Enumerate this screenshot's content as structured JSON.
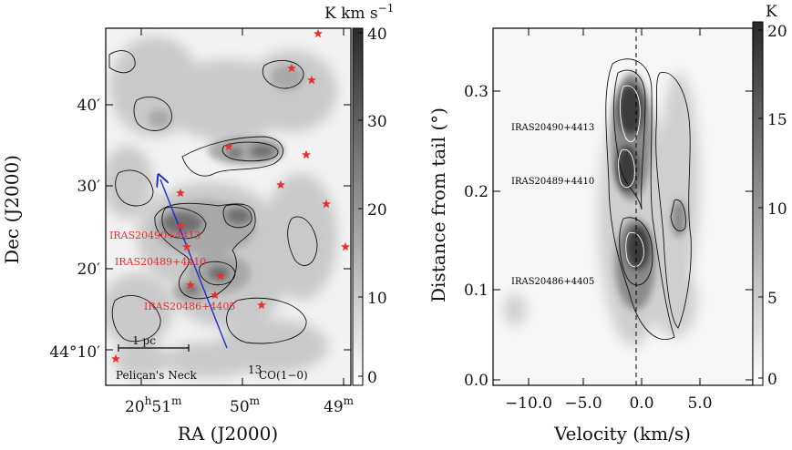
{
  "chart_data": [
    {
      "type": "heatmap",
      "title": "",
      "xlabel": "RA (J2000)",
      "ylabel": "Dec (J2000)",
      "x_ticks": [
        {
          "main": "20",
          "sup1": "h",
          "main2": "51",
          "sup2": "m"
        },
        {
          "main": "50",
          "sup1": "m",
          "main2": "",
          "sup2": ""
        },
        {
          "main": "49",
          "sup1": "m",
          "main2": "",
          "sup2": ""
        }
      ],
      "y_ticks": [
        "44°10′",
        "20′",
        "30′",
        "40′"
      ],
      "colorbar": {
        "label": "K km s",
        "label_sup": "−1",
        "ticks": [
          "0",
          "10",
          "20",
          "30",
          "40"
        ],
        "range": [
          0,
          40
        ]
      },
      "annotations": {
        "scale_bar": "1 pc",
        "region": "Pelican's Neck",
        "tracer": "CO(1−0)",
        "tracer_sup": "13"
      },
      "sources": [
        {
          "name": "IRAS20490+4413"
        },
        {
          "name": "IRAS20489+4410"
        },
        {
          "name": "IRAS20486+4405"
        }
      ],
      "grid": false,
      "colors": {
        "stars": "#e53030",
        "arrow": "#1a2fd0",
        "contours": "#111111"
      }
    },
    {
      "type": "heatmap",
      "title": "",
      "xlabel": "Velocity (km/s)",
      "ylabel": "Distance from tail (°)",
      "xlim": [
        -12.5,
        9.5
      ],
      "ylim": [
        -0.02,
        0.37
      ],
      "x_ticks": [
        "−10.0",
        "−5.0",
        "0.0",
        "5.0"
      ],
      "y_ticks": [
        "0.0",
        "0.1",
        "0.2",
        "0.3"
      ],
      "colorbar": {
        "label": "K",
        "ticks": [
          "0",
          "5",
          "10",
          "15",
          "20"
        ],
        "range": [
          0,
          20
        ]
      },
      "annotations": {
        "dashed_line_velocity": -0.5,
        "sources": [
          {
            "name": "IRAS20490+4413",
            "y": 0.265
          },
          {
            "name": "IRAS20489+4410",
            "y": 0.205
          },
          {
            "name": "IRAS20486+4405",
            "y": 0.11
          }
        ]
      },
      "grid": false
    }
  ]
}
